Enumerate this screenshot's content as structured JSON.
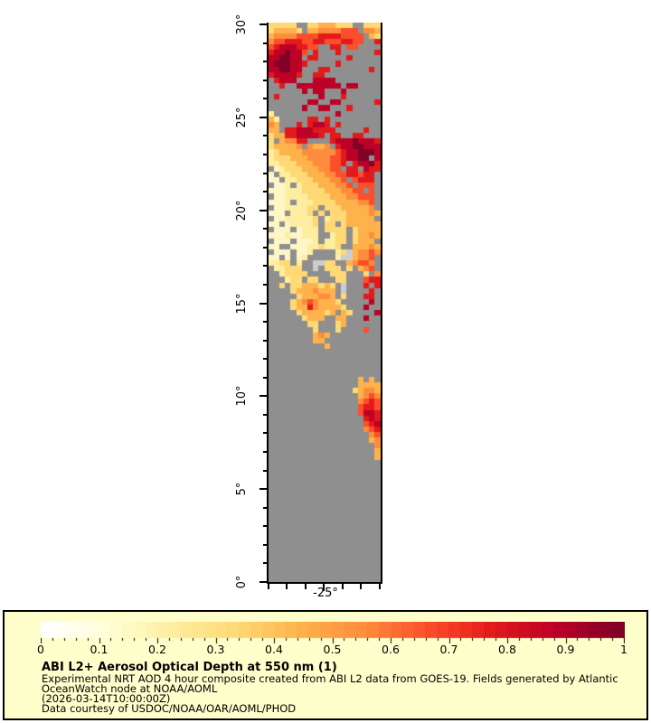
{
  "chart_data": {
    "type": "heatmap",
    "description": "Gridded aerosol optical depth raster over the eastern tropical Atlantic; gray = no data, light gray = cloud, colors = AOD 0..1 on YlOrRd scale",
    "x_axis": {
      "min": -28,
      "max": -21.95,
      "tick_lons": [
        -28,
        -27,
        -26,
        -25,
        -24,
        -23,
        -22
      ],
      "label": "-25°",
      "label_lon": -25
    },
    "y_axis": {
      "min": 0,
      "max": 30.1,
      "majors": [
        {
          "lat": 30,
          "label": "30°"
        },
        {
          "lat": 25,
          "label": "25°"
        },
        {
          "lat": 20,
          "label": "20°"
        },
        {
          "lat": 15,
          "label": "15°"
        },
        {
          "lat": 10,
          "label": "10°"
        },
        {
          "lat": 5,
          "label": "5°"
        },
        {
          "lat": 0,
          "label": "0°"
        }
      ],
      "minor_step": 1
    },
    "palette": {
      ".": "#8f8f8f",
      "c": "#cccccc",
      "1": "#fff6c8",
      "2": "#ffeda0",
      "3": "#fed976",
      "4": "#feb24c",
      "5": "#fd8d3c",
      "6": "#fc4e2a",
      "7": "#e31a1c",
      "8": "#bd0026",
      "9": "#800026"
    },
    "grid": [
      "33333..33444333..333",
      "344443.445555666.554",
      "45555666677776666.43",
      "56677766776667766..7",
      "678887766..77.66....",
      "7889886.7...7......7",
      "889988.77.....7.....",
      "8999887.....7.......",
      "889988...77.......7.",
      "788887..77..........",
      ".7888...8888........",
      "..7..88888888.88....",
      "......8.88...8......",
      ".7.......8...7......",
      ".......88..88......7",
      "......8..88...7.....",
      "2...........8.......",
      "42.....77.7.........",
      "54...7.7887.7.......",
      "44.778887777.....7..",
      "3447788887.77..77...",
      "3.45577....788898887",
      "344445.5445.78899888",
      "23444455555567889998",
      "233344455556678899.8",
      "22333444555667.78897",
      ".123334445566.77.877",
      "1.22333444556677677.",
      "11.22333444556.6777.",
      ".112.2333444556.666.",
      "11122233334445566.6.",
      ".112222333344455666.",
      "1112.22233334444556.",
      ".11222233.333444445.",
      "111.2223.3.333444454",
      ".11222223.233344444.",
      "11.122223.33.3444444",
      ".111.1222.3333.34444",
      "111211222..233.34454",
      ".111.1112.2233.3444.",
      "11..111223223..44454",
      ".111.112....23c45565",
      "11.1.12.....2cc4556.",
      "2233.2..cc33..45665.",
      ".22333..c.333.3.456.",
      "..23333....333...3.5",
      "...233.33...33...677",
      "..3.33444343.c...7.7",
      "....34445444.c....7.",
      ".....3444554.3...77.",
      "....345654443.....8.",
      "....3447544443...8..",
      ".....3444434.43....8",
      "......3444..44...8..",
      ".......33...34......",
      "........3...3....6..",
      "........454.........",
      "........44..........",
      "..........4.........",
      "....................",
      "....................",
      "....................",
      "....................",
      "....................",
      "................4.4.",
      "................4444",
      "...............34554",
      "................4565",
      "................5676",
      "................6776",
      "................6887",
      ".................787",
      ".................678",
      ".................567",
      "..................56",
      "..................45",
      "...................5",
      "...................4",
      "...................4",
      "....................",
      "....................",
      "....................",
      "....................",
      "....................",
      "....................",
      "....................",
      "....................",
      "....................",
      "....................",
      "....................",
      "....................",
      "....................",
      "....................",
      "....................",
      "....................",
      "....................",
      "....................",
      "....................",
      "....................",
      "....................",
      "...................."
    ],
    "colorbar": {
      "stops": [
        "#ffffff",
        "#ffffd4",
        "#ffeda0",
        "#fed976",
        "#feb24c",
        "#fd8d3c",
        "#fc4e2a",
        "#e31a1c",
        "#bd0026",
        "#800026"
      ],
      "blocks": 50,
      "tick_labels": [
        "0",
        "0.1",
        "0.2",
        "0.3",
        "0.4",
        "0.5",
        "0.6",
        "0.7",
        "0.8",
        "0.9",
        "1"
      ],
      "minors_per_major": 5
    }
  },
  "legend": {
    "background": "#ffffcc",
    "border_color": "#000000",
    "title": "ABI L2+ Aerosol Optical Depth at 550 nm (1)",
    "lines": [
      "Experimental NRT AOD 4 hour composite created from ABI L2 data from GOES-19. Fields generated by Atlantic",
      "OceanWatch node at NOAA/AOML",
      "(2026-03-14T10:00:00Z)",
      "Data courtesy of USDOC/NOAA/OAR/AOML/PHOD"
    ]
  }
}
